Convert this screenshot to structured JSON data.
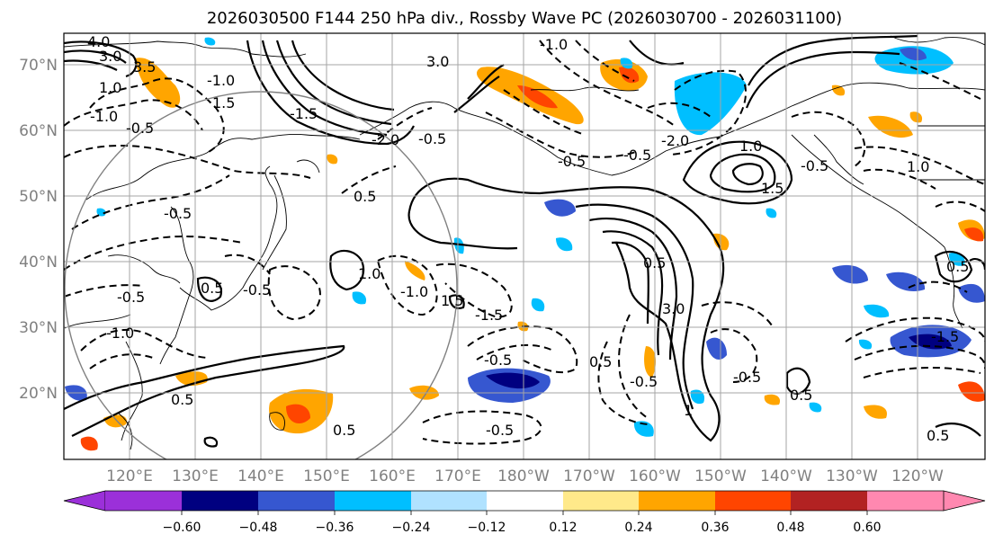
{
  "title": "2026030500 F144 250 hPa div., Rossby Wave PC (2026030700 - 2026031100)",
  "lat_labels": [
    "70°N",
    "60°N",
    "50°N",
    "40°N",
    "30°N",
    "20°N"
  ],
  "lon_labels": [
    "120°E",
    "130°E",
    "140°E",
    "150°E",
    "160°E",
    "170°E",
    "180°W",
    "170°W",
    "160°W",
    "150°W",
    "140°W",
    "130°W",
    "120°W"
  ],
  "colorbar": {
    "ticks": [
      "−0.60",
      "−0.48",
      "−0.36",
      "−0.24",
      "−0.12",
      "0.12",
      "0.24",
      "0.36",
      "0.48",
      "0.60"
    ],
    "colors": [
      "#9b30d9",
      "#000080",
      "#3657d0",
      "#00bfff",
      "#b0e2ff",
      "#ffffff",
      "#ffe98a",
      "#ffa500",
      "#ff4500",
      "#b22222",
      "#ff88b0"
    ]
  },
  "contour_labels": [
    {
      "text": "4.0"
    },
    {
      "text": "3.0"
    },
    {
      "text": "3.5"
    },
    {
      "text": "1.0"
    },
    {
      "text": "1.5"
    },
    {
      "text": "-1.0"
    },
    {
      "text": "-1.5"
    },
    {
      "text": "3.0"
    },
    {
      "text": "-1.0"
    },
    {
      "text": "-2.0"
    },
    {
      "text": "-2.0"
    },
    {
      "text": "-0.5"
    },
    {
      "text": "-0.5"
    },
    {
      "text": "1.0"
    },
    {
      "text": "-0.5"
    },
    {
      "text": "-0.5"
    },
    {
      "text": "1.0"
    },
    {
      "text": "1.5"
    },
    {
      "text": "-0.5"
    },
    {
      "text": "0.5"
    },
    {
      "text": "-0.5"
    },
    {
      "text": "1.0"
    },
    {
      "text": "-1.0"
    },
    {
      "text": "-0.5"
    },
    {
      "text": "0.5"
    },
    {
      "text": "-1.0"
    },
    {
      "text": "1.5"
    },
    {
      "text": "-1.5"
    },
    {
      "text": "3.0"
    },
    {
      "text": "0.5"
    },
    {
      "text": "0.5"
    },
    {
      "text": "0.5"
    },
    {
      "text": "-0.5"
    },
    {
      "text": "-0.5"
    },
    {
      "text": "0.5"
    },
    {
      "text": "-0.5"
    },
    {
      "text": "1"
    },
    {
      "text": "-1.5"
    },
    {
      "text": "-0.5"
    },
    {
      "text": "0.5"
    },
    {
      "text": "-0.5"
    },
    {
      "text": "-1.0"
    },
    {
      "text": "0.5"
    },
    {
      "text": "0.5"
    }
  ]
}
